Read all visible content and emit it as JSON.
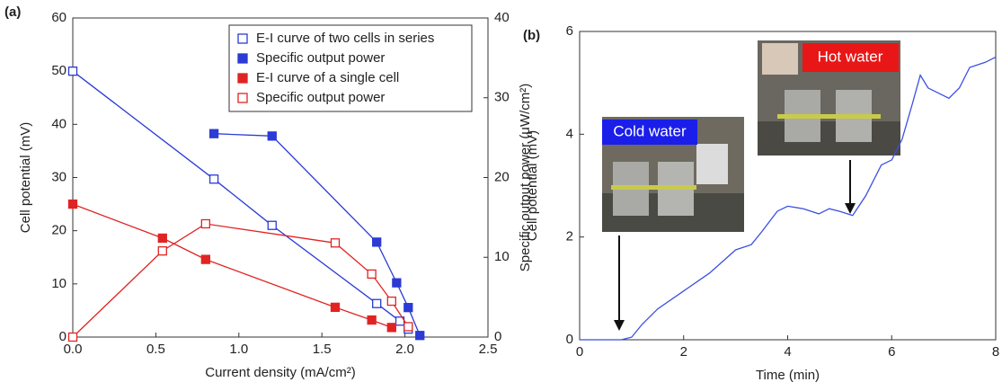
{
  "chart_data": [
    {
      "type": "line",
      "label": "(a)",
      "x_label": "Current density (mA/cm²)",
      "y_label": "Cell potential (mV)",
      "y2_label": "Specific output power (μW/cm²)",
      "xlim": [
        0,
        2.5
      ],
      "xticks": [
        {
          "value": 0,
          "label": "0.0"
        },
        0.5,
        {
          "value": 1,
          "label": "1.0"
        },
        1.5,
        {
          "value": 2,
          "label": "2.0"
        },
        2.5
      ],
      "ylim": [
        0,
        60
      ],
      "yticks": [
        0,
        10,
        20,
        30,
        40,
        50,
        60
      ],
      "y2lim": [
        0,
        40
      ],
      "y2ticks": [
        0,
        10,
        20,
        30,
        40
      ],
      "legend": "upper right",
      "series": [
        {
          "name": "E-I curve of two cells in series",
          "color": "#2b3bd4",
          "marker": "open",
          "axis": "y",
          "x": [
            0,
            0.85,
            1.2,
            1.83,
            1.97,
            2.02
          ],
          "values": [
            50,
            29.7,
            21,
            6.3,
            3,
            1.5
          ]
        },
        {
          "name": "Specific output power",
          "color": "#2b3bd4",
          "marker": "filled",
          "axis": "y2",
          "x": [
            0.85,
            1.2,
            1.83,
            1.95,
            2.02,
            2.09
          ],
          "values": [
            25.5,
            25.2,
            11.9,
            6.8,
            3.7,
            0.2
          ]
        },
        {
          "name": "E-I curve of a single cell",
          "color": "#e02424",
          "marker": "filled",
          "axis": "y",
          "x": [
            0,
            0.54,
            0.8,
            1.58,
            1.8,
            1.92
          ],
          "values": [
            25,
            18.6,
            14.6,
            5.6,
            3.2,
            1.8
          ]
        },
        {
          "name": "Specific output power",
          "color": "#e02424",
          "marker": "open",
          "axis": "y2",
          "x": [
            0,
            0.54,
            0.8,
            1.58,
            1.8,
            1.92,
            2.02
          ],
          "values": [
            0,
            10.8,
            14.2,
            11.8,
            7.9,
            4.5,
            1.3
          ]
        }
      ]
    },
    {
      "type": "line",
      "label": "(b)",
      "x_label": "Time (min)",
      "y_label": "Cell potential (mV)",
      "xlim": [
        0,
        8
      ],
      "xticks": [
        0,
        2,
        4,
        6,
        8
      ],
      "ylim": [
        0,
        6
      ],
      "yticks": [
        0,
        2,
        4,
        6
      ],
      "annotations": [
        "Cold water",
        "Hot water"
      ],
      "color": "#3b4fe0",
      "x": [
        0,
        0.5,
        0.8,
        1.0,
        1.2,
        1.5,
        2,
        2.5,
        3,
        3.3,
        3.5,
        3.8,
        4.0,
        4.3,
        4.6,
        4.8,
        5.0,
        5.25,
        5.5,
        5.8,
        6.0,
        6.2,
        6.4,
        6.55,
        6.7,
        6.9,
        7.1,
        7.3,
        7.5,
        7.8,
        8.0
      ],
      "values": [
        0,
        0,
        0,
        0.05,
        0.3,
        0.6,
        0.95,
        1.3,
        1.75,
        1.85,
        2.1,
        2.5,
        2.6,
        2.55,
        2.45,
        2.55,
        2.5,
        2.42,
        2.8,
        3.4,
        3.5,
        3.9,
        4.6,
        5.15,
        4.9,
        4.8,
        4.7,
        4.9,
        5.3,
        5.4,
        5.5
      ]
    }
  ]
}
